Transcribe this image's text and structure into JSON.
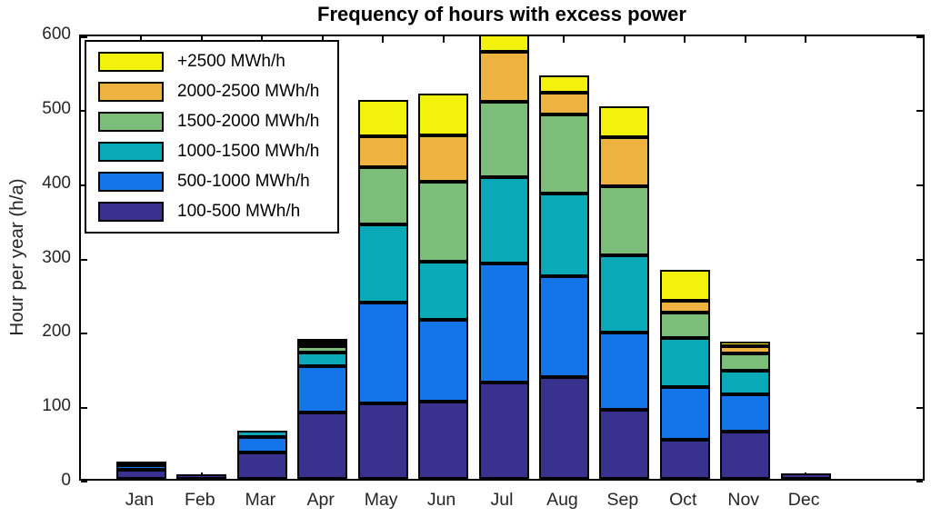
{
  "title": "Frequency of hours with excess power",
  "y_axis": {
    "label": "Hour per year (h/a)",
    "ticks": [
      0,
      100,
      200,
      300,
      400,
      500,
      600
    ],
    "max": 600
  },
  "x_axis": {
    "categories": [
      "Jan",
      "Feb",
      "Mar",
      "Apr",
      "May",
      "Jun",
      "Jul",
      "Aug",
      "Sep",
      "Oct",
      "Nov",
      "Dec"
    ]
  },
  "legend": [
    {
      "label": "+2500 MWh/h",
      "color": "#F2F20C"
    },
    {
      "label": "2000-2500 MWh/h",
      "color": "#EDB23F"
    },
    {
      "label": "1500-2000 MWh/h",
      "color": "#7CBE79"
    },
    {
      "label": "1000-1500 MWh/h",
      "color": "#09A9B8"
    },
    {
      "label": "500-1000 MWh/h",
      "color": "#1375E8"
    },
    {
      "label": "100-500 MWh/h",
      "color": "#39318E"
    }
  ],
  "chart_data": {
    "type": "bar",
    "stacked": true,
    "title": "Frequency of hours with excess power",
    "xlabel": "",
    "ylabel": "Hour per year (h/a)",
    "categories": [
      "Jan",
      "Feb",
      "Mar",
      "Apr",
      "May",
      "Jun",
      "Jul",
      "Aug",
      "Sep",
      "Oct",
      "Nov",
      "Dec"
    ],
    "series": [
      {
        "name": "100-500 MWh/h",
        "color": "#39318E",
        "values": [
          12,
          6,
          35,
          89,
          102,
          104,
          130,
          137,
          93,
          53,
          63,
          7
        ]
      },
      {
        "name": "500-1000 MWh/h",
        "color": "#1375E8",
        "values": [
          6,
          0,
          21,
          63,
          135,
          110,
          160,
          135,
          104,
          70,
          51,
          0
        ]
      },
      {
        "name": "1000-1500 MWh/h",
        "color": "#09A9B8",
        "values": [
          5,
          0,
          9,
          18,
          105,
          78,
          116,
          112,
          104,
          66,
          32,
          0
        ]
      },
      {
        "name": "1500-2000 MWh/h",
        "color": "#7CBE79",
        "values": [
          0,
          0,
          0,
          9,
          77,
          108,
          101,
          106,
          92,
          35,
          23,
          0
        ]
      },
      {
        "name": "2000-2500 MWh/h",
        "color": "#EDB23F",
        "values": [
          0,
          0,
          0,
          2,
          42,
          62,
          67,
          29,
          67,
          16,
          9,
          0
        ]
      },
      {
        "name": "+2500 MWh/h",
        "color": "#F2F20C",
        "values": [
          0,
          0,
          0,
          2,
          49,
          56,
          24,
          24,
          41,
          41,
          7,
          0
        ]
      }
    ],
    "totals": [
      23,
      6,
      65,
      183,
      510,
      518,
      598,
      543,
      501,
      281,
      185,
      7
    ],
    "ylim": [
      0,
      600
    ],
    "yticks": [
      0,
      100,
      200,
      300,
      400,
      500,
      600
    ],
    "grid": false,
    "legend_position": "upper-left",
    "tick_direction": "in"
  }
}
